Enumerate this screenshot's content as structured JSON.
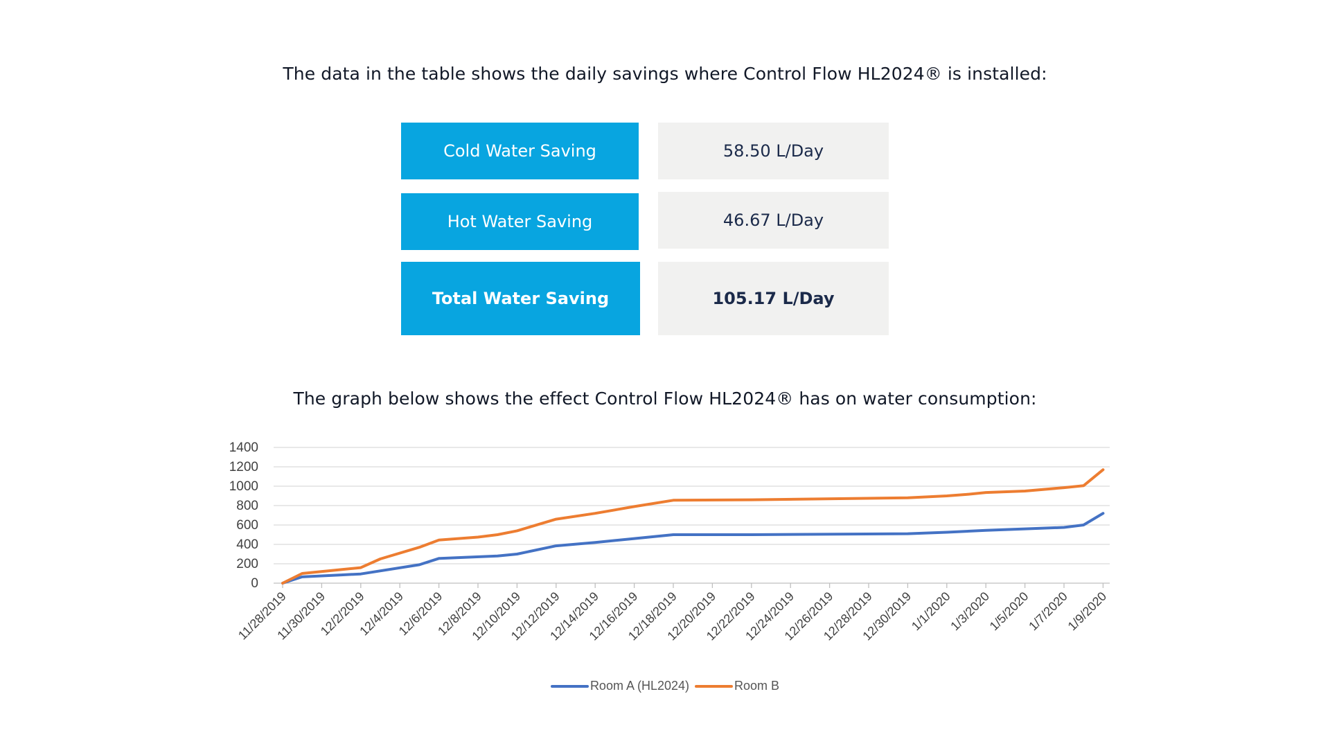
{
  "intro_text": "The data in the table shows the daily savings where Control Flow HL2024® is installed:",
  "graph_text": "The graph below shows the effect Control Flow HL2024® has on water consumption:",
  "table": {
    "rows": [
      {
        "label": "Cold Water Saving",
        "value": "58.50 L/Day"
      },
      {
        "label": "Hot Water Saving",
        "value": "46.67 L/Day"
      },
      {
        "label": "Total Water Saving",
        "value": "105.17 L/Day"
      }
    ]
  },
  "colors": {
    "label_bg": "#08a5e0",
    "value_bg": "#f1f1f0",
    "room_a": "#4472c4",
    "room_b": "#ed7d31"
  },
  "chart_data": {
    "type": "line",
    "ylim": [
      0,
      1400
    ],
    "yticks": [
      0,
      200,
      400,
      600,
      800,
      1000,
      1200,
      1400
    ],
    "grid": true,
    "legend_position": "bottom",
    "x_tick_labels": [
      "11/28/2019",
      "11/30/2019",
      "12/2/2019",
      "12/4/2019",
      "12/6/2019",
      "12/8/2019",
      "12/10/2019",
      "12/12/2019",
      "12/14/2019",
      "12/16/2019",
      "12/18/2019",
      "12/20/2019",
      "12/22/2019",
      "12/24/2019",
      "12/26/2019",
      "12/28/2019",
      "12/30/2019",
      "1/1/2020",
      "1/3/2020",
      "1/5/2020",
      "1/7/2020",
      "1/9/2020"
    ],
    "series": [
      {
        "name": "Room A (HL2024)",
        "color": "#4472c4",
        "points": [
          [
            "11/28/2019",
            0
          ],
          [
            "11/29/2019",
            65
          ],
          [
            "12/1/2019",
            85
          ],
          [
            "12/2/2019",
            95
          ],
          [
            "12/5/2019",
            190
          ],
          [
            "12/6/2019",
            255
          ],
          [
            "12/9/2019",
            280
          ],
          [
            "12/10/2019",
            300
          ],
          [
            "12/12/2019",
            385
          ],
          [
            "12/14/2019",
            420
          ],
          [
            "12/16/2019",
            460
          ],
          [
            "12/18/2019",
            500
          ],
          [
            "12/22/2019",
            500
          ],
          [
            "12/30/2019",
            510
          ],
          [
            "1/1/2020",
            525
          ],
          [
            "1/3/2020",
            545
          ],
          [
            "1/5/2020",
            560
          ],
          [
            "1/7/2020",
            575
          ],
          [
            "1/8/2020",
            600
          ],
          [
            "1/9/2020",
            720
          ]
        ]
      },
      {
        "name": "Room B",
        "color": "#ed7d31",
        "points": [
          [
            "11/28/2019",
            0
          ],
          [
            "11/29/2019",
            100
          ],
          [
            "12/1/2019",
            140
          ],
          [
            "12/2/2019",
            160
          ],
          [
            "12/3/2019",
            250
          ],
          [
            "12/5/2019",
            370
          ],
          [
            "12/6/2019",
            445
          ],
          [
            "12/8/2019",
            475
          ],
          [
            "12/9/2019",
            500
          ],
          [
            "12/10/2019",
            540
          ],
          [
            "12/12/2019",
            660
          ],
          [
            "12/14/2019",
            720
          ],
          [
            "12/16/2019",
            790
          ],
          [
            "12/18/2019",
            855
          ],
          [
            "12/22/2019",
            860
          ],
          [
            "12/30/2019",
            880
          ],
          [
            "1/1/2020",
            900
          ],
          [
            "1/2/2020",
            915
          ],
          [
            "1/3/2020",
            935
          ],
          [
            "1/5/2020",
            950
          ],
          [
            "1/7/2020",
            985
          ],
          [
            "1/8/2020",
            1005
          ],
          [
            "1/9/2020",
            1170
          ]
        ]
      }
    ]
  }
}
